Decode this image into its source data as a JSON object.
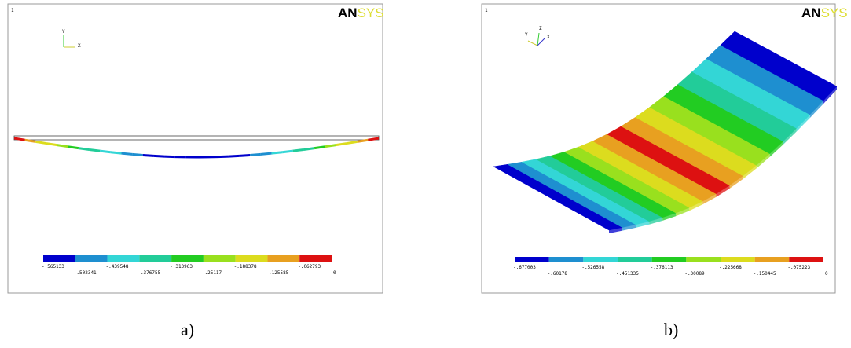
{
  "panels": [
    {
      "index": "1",
      "logo_dark": "AN",
      "logo_light": "SYS",
      "axis_labels": [
        "Y",
        "X"
      ],
      "legend_labels": [
        "-.565133",
        "-.502341",
        "-.439548",
        "-.376755",
        "-.313963",
        "-.25117",
        "-.188378",
        "-.125585",
        "-.062793",
        "0"
      ],
      "caption": "a)"
    },
    {
      "index": "1",
      "logo_dark": "AN",
      "logo_light": "SYS",
      "axis_labels": [
        "Y",
        "Z",
        "X"
      ],
      "legend_labels": [
        "-.677003",
        "-.60178",
        "-.526558",
        "-.451335",
        "-.376113",
        "-.30089",
        "-.225668",
        "-.150445",
        "-.075223",
        "0"
      ],
      "caption": "b)"
    }
  ],
  "contour_colors": [
    "#0000cc",
    "#1e8fd0",
    "#33d6d6",
    "#22cc99",
    "#22cc22",
    "#99e01e",
    "#dcdc1e",
    "#e8a020",
    "#dd1111"
  ]
}
